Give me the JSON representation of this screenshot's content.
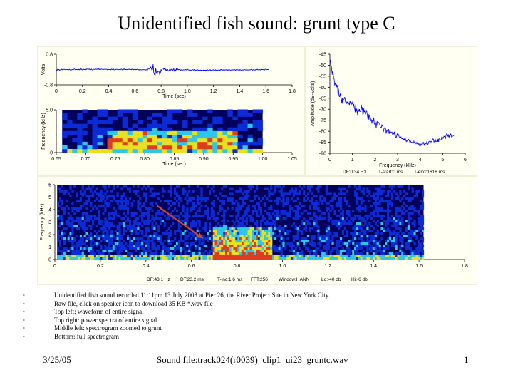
{
  "title": "Unidentified fish sound: grunt type C",
  "bullets": [
    "Unidentified fish sound recorded 11:11pm 13 July 2003 at Pier 26, the River Project Site in New York City.",
    "Raw file, click on speaker icon to download 35 KB *.wav file",
    "Top left: waveform of entire signal",
    "Top right: power spectra of entire signal",
    "Middle left: spectrogram zoomed to grunt",
    "Bottom: full spectrogram"
  ],
  "footer": {
    "date": "3/25/05",
    "file": "Sound file:track024(r0039)_clip1_ui23_gruntc.wav",
    "page": "1"
  },
  "colors": {
    "trace": "#0000ff",
    "spec_background": "#00005a",
    "spec_low": "#0a2bd6",
    "spec_mid": "#2fc7e8",
    "spec_high": "#e8e020",
    "spec_peak": "#e23a1c",
    "arrow": "#e04818",
    "panel_bg": "#fffff2"
  },
  "chart_data": [
    {
      "type": "line",
      "name_on_chart": "waveform",
      "xlabel": "Time (sec)",
      "ylabel": "Volts",
      "xlim": [
        0,
        1.8
      ],
      "ylim": [
        -0.8,
        0.8
      ],
      "xticks": [
        "0",
        "0.2",
        "0.4",
        "0.6",
        "0.8",
        "1.0",
        "1.2",
        "1.4",
        "1.6",
        "1.8"
      ],
      "yticks": [
        "0.8",
        "-0.8"
      ],
      "signal_end": 1.62,
      "burst_center": 0.76
    },
    {
      "type": "line",
      "xlabel": "Frequency (kHz)",
      "ylabel": "Amplitude (dB-Volts)",
      "xlim": [
        0,
        6
      ],
      "ylim": [
        -90,
        -45
      ],
      "xticks": [
        "0",
        "1",
        "2",
        "3",
        "4",
        "5",
        "6"
      ],
      "yticks": [
        "-45",
        "-50",
        "-55",
        "-60",
        "-65",
        "-70",
        "-75",
        "-80",
        "-85",
        "-90"
      ],
      "x": [
        0.0,
        0.1,
        0.2,
        0.3,
        0.4,
        0.5,
        0.6,
        0.8,
        1.0,
        1.2,
        1.4,
        1.6,
        1.8,
        2.0,
        2.2,
        2.4,
        2.6,
        2.8,
        3.0,
        3.2,
        3.4,
        3.6,
        3.8,
        4.0,
        4.2,
        4.4,
        4.6,
        4.8,
        5.0,
        5.2,
        5.4,
        5.5
      ],
      "y": [
        -47,
        -52,
        -58,
        -60,
        -62,
        -66,
        -65,
        -67,
        -68,
        -71,
        -70,
        -73,
        -74,
        -76,
        -77,
        -79,
        -80,
        -81,
        -82,
        -83,
        -84,
        -85,
        -85,
        -86,
        -86,
        -85,
        -84,
        -84,
        -83,
        -82,
        -82,
        -82
      ],
      "caption": {
        "df": "DF:0.34 Hz",
        "t_start": "T-start:0 ms",
        "t_end": "T-end:1618 ms"
      }
    },
    {
      "type": "heatmap",
      "name_on_chart": "zoomed spectrogram",
      "xlabel": "Time (sec)",
      "ylabel": "Frequency (kHz)",
      "xlim": [
        0.65,
        1.05
      ],
      "ylim": [
        0,
        5.0
      ],
      "xticks": [
        "0.65",
        "0.70",
        "0.75",
        "0.80",
        "0.85",
        "0.90",
        "0.95",
        "1.00",
        "1.05"
      ],
      "yticks": [
        "5.0",
        "0"
      ],
      "data_extent": [
        0.66,
        1.0
      ],
      "grunt": {
        "t_start": 0.73,
        "t_end": 0.95,
        "f_low": 0.1,
        "f_high": 2.5
      }
    },
    {
      "type": "heatmap",
      "name_on_chart": "full spectrogram",
      "xlabel": "",
      "ylabel": "Frequency (kHz)",
      "xlim": [
        0,
        1.8
      ],
      "ylim": [
        0,
        6
      ],
      "xticks": [
        "0",
        "0.2",
        "0.4",
        "0.6",
        "0.8",
        "1.0",
        "1.2",
        "1.4",
        "1.6",
        "1.8"
      ],
      "yticks": [
        "6",
        "5",
        "4",
        "3",
        "2",
        "1",
        "0"
      ],
      "data_extent": [
        0.01,
        1.62
      ],
      "grunt": {
        "t_start": 0.69,
        "t_end": 0.95,
        "f_low": 0.0,
        "f_high": 2.5
      },
      "arrow": {
        "from_t": 0.45,
        "from_f": 4.3,
        "to_t": 0.65,
        "to_f": 1.7
      },
      "caption": {
        "df": "DF:43.1 Hz",
        "dt": "DT:23.2 ms",
        "t_inc": "T-inc:1.6 ms",
        "fft": "FFT:256",
        "window": "Window:HANN",
        "lo": "Lo:-40 db",
        "hi": "Hi:-6 db"
      }
    }
  ]
}
